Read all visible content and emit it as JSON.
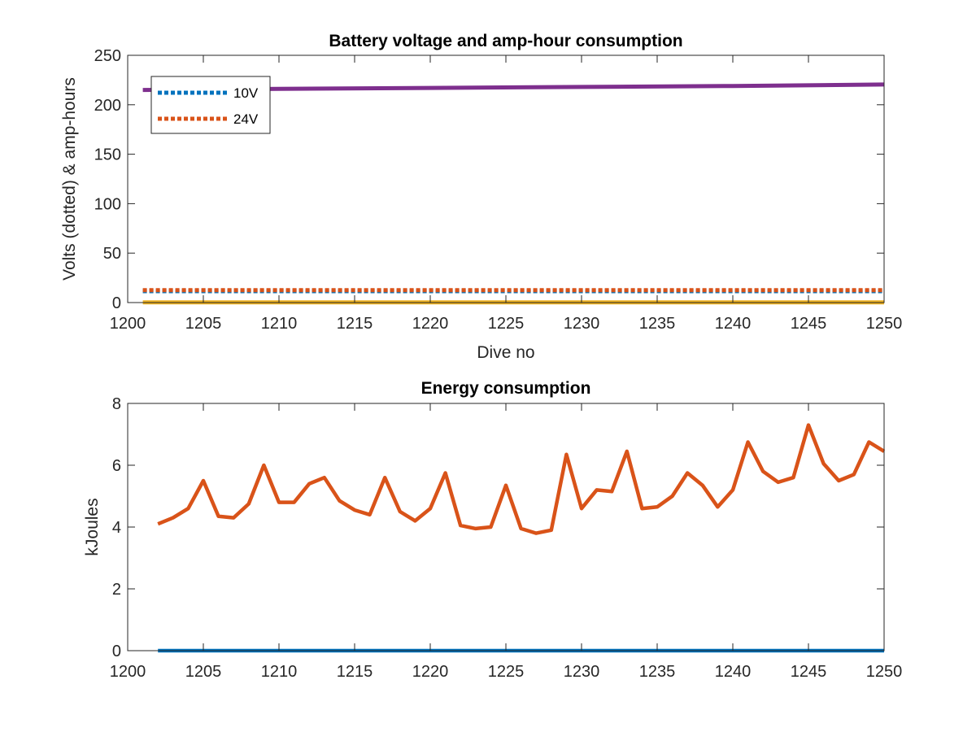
{
  "chart_data": [
    {
      "type": "line",
      "title": "Battery voltage and amp-hour consumption",
      "xlabel": "Dive no",
      "ylabel": "Volts (dotted) & amp-hours",
      "xlim": [
        1200,
        1250
      ],
      "ylim": [
        0,
        250
      ],
      "xticks": [
        1200,
        1205,
        1210,
        1215,
        1220,
        1225,
        1230,
        1235,
        1240,
        1245,
        1250
      ],
      "yticks": [
        0,
        50,
        100,
        150,
        200,
        250
      ],
      "legend": {
        "placement": "top-left",
        "entries": [
          "10V",
          "24V"
        ]
      },
      "series": [
        {
          "name": "10V",
          "style": "dotted",
          "color": "#0072BD",
          "x": [
            1201,
            1250
          ],
          "y": [
            11.5,
            11.5
          ]
        },
        {
          "name": "24V",
          "style": "dotted",
          "color": "#D95319",
          "x": [
            1201,
            1250
          ],
          "y": [
            12.5,
            12.5
          ]
        },
        {
          "style": "solid",
          "color": "#EDB120",
          "x": [
            1201,
            1250
          ],
          "y": [
            0.2,
            0.2
          ]
        },
        {
          "style": "solid",
          "color": "#7E2F8E",
          "x": [
            1201,
            1210,
            1220,
            1230,
            1240,
            1250
          ],
          "y": [
            215,
            216,
            217,
            218,
            219,
            220.5
          ]
        }
      ]
    },
    {
      "type": "line",
      "title": "Energy consumption",
      "xlabel": "",
      "ylabel": "kJoules",
      "xlim": [
        1200,
        1250
      ],
      "ylim": [
        0,
        8
      ],
      "xticks": [
        1200,
        1205,
        1210,
        1215,
        1220,
        1225,
        1230,
        1235,
        1240,
        1245,
        1250
      ],
      "yticks": [
        0,
        2,
        4,
        6,
        8
      ],
      "series": [
        {
          "style": "solid",
          "color": "#0072BD",
          "x": [
            1202,
            1250
          ],
          "y": [
            0,
            0
          ]
        },
        {
          "style": "solid",
          "color": "#D95319",
          "x": [
            1202,
            1203,
            1204,
            1205,
            1206,
            1207,
            1208,
            1209,
            1210,
            1211,
            1212,
            1213,
            1214,
            1215,
            1216,
            1217,
            1218,
            1219,
            1220,
            1221,
            1222,
            1223,
            1224,
            1225,
            1226,
            1227,
            1228,
            1229,
            1230,
            1231,
            1232,
            1233,
            1234,
            1235,
            1236,
            1237,
            1238,
            1239,
            1240,
            1241,
            1242,
            1243,
            1244,
            1245,
            1246,
            1247,
            1248,
            1249,
            1250
          ],
          "y": [
            4.1,
            4.3,
            4.6,
            5.5,
            4.35,
            4.3,
            4.75,
            6.0,
            4.8,
            4.8,
            5.4,
            5.6,
            4.85,
            4.55,
            4.4,
            5.6,
            4.5,
            4.2,
            4.6,
            5.75,
            4.05,
            3.95,
            4.0,
            5.35,
            3.95,
            3.8,
            3.9,
            6.35,
            4.6,
            5.2,
            5.15,
            6.45,
            4.6,
            4.65,
            5.0,
            5.75,
            5.35,
            4.65,
            5.2,
            6.75,
            5.8,
            5.45,
            5.6,
            7.3,
            6.05,
            5.5,
            5.7,
            6.75,
            6.45
          ]
        }
      ]
    }
  ]
}
